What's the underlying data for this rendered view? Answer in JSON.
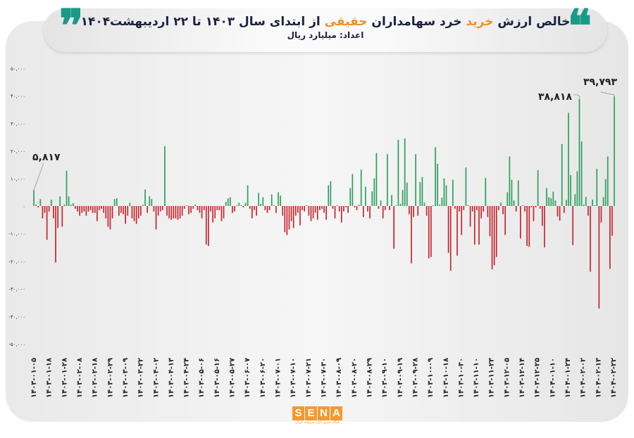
{
  "header": {
    "title_parts": [
      "خالص ارزش ",
      "خرید",
      " خرد سهامداران ",
      "حقیقی",
      " از ابتدای سال ۱۴۰۳ تا ۲۲ اردیبهشت۱۴۰۴"
    ],
    "subtitle": "اعداد: میلیارد ریال",
    "quote_open": "❝",
    "quote_close": "❞"
  },
  "colors": {
    "positive": "#2f9e5f",
    "negative": "#c4262e",
    "accent": "#f0902c",
    "quote": "#1a9a86"
  },
  "logo": {
    "text": "SENA",
    "letters": [
      "S",
      "E",
      "N",
      "A"
    ],
    "tagline": "پایگاه خبری بازار سرمایه ایران"
  },
  "chart_data": {
    "type": "bar",
    "title": "خالص ارزش خرید خرد سهامداران حقیقی از ابتدای سال ۱۴۰۳ تا ۲۲ اردیبهشت۱۴۰۴",
    "ylabel": "میلیارد ریال",
    "ylim": [
      -50000,
      50000
    ],
    "yticks": [
      50000,
      40000,
      30000,
      20000,
      10000,
      0,
      -10000,
      -20000,
      -30000,
      -40000,
      -50000
    ],
    "ytick_labels": [
      "۵۰,۰۰۰",
      "۴۰,۰۰۰",
      "۳۰,۰۰۰",
      "۲۰,۰۰۰",
      "۱۰,۰۰۰",
      "۰",
      "-۱۰,۰۰۰",
      "-۲۰,۰۰۰",
      "-۳۰,۰۰۰",
      "-۴۰,۰۰۰",
      "-۵۰,۰۰۰"
    ],
    "xtick_labels": [
      "۱۴۰۳-۰۱-۰۵",
      "۱۴۰۳-۰۱-۱۸",
      "۱۴۰۳-۰۱-۲۸",
      "۱۴۰۳-۰۲-۰۸",
      "۱۴۰۳-۰۲-۱۸",
      "۱۴۰۳-۰۲-۲۹",
      "۱۴۰۳-۰۳-۰۹",
      "۱۴۰۳-۰۳-۲۲",
      "۱۴۰۳-۰۴-۰۲",
      "۱۴۰۳-۰۴-۱۳",
      "۱۴۰۳-۰۴-۲۴",
      "۱۴۰۳-۰۵-۰۶",
      "۱۴۰۳-۰۵-۱۶",
      "۱۴۰۳-۰۵-۲۷",
      "۱۴۰۳-۰۶-۰۷",
      "۱۴۰۳-۰۶-۲۰",
      "۱۴۰۳-۰۷-۰۱",
      "۱۴۰۳-۰۷-۱۰",
      "۱۴۰۳-۰۷-۲۱",
      "۱۴۰۳-۰۷-۳۰",
      "۱۴۰۳-۰۸-۰۹",
      "۱۴۰۳-۰۸-۲۰",
      "۱۴۰۳-۰۸-۲۹",
      "۱۴۰۳-۰۹-۱۰",
      "۱۴۰۳-۰۹-۱۹",
      "۱۴۰۳-۰۹-۲۸",
      "۱۴۰۳-۱۰-۰۹",
      "۱۴۰۳-۱۰-۱۸",
      "۱۴۰۳-۱۰-۳۰",
      "۱۴۰۳-۱۱-۱۰",
      "۱۴۰۳-۱۱-۲۳",
      "۱۴۰۳-۱۲-۰۵",
      "۱۴۰۳-۱۲-۱۴",
      "۱۴۰۳-۱۲-۲۵",
      "۱۴۰۴-۰۱-۱۰",
      "۱۴۰۴-۰۱-۲۴",
      "۱۴۰۴-۰۲-۰۲",
      "۱۴۰۴-۰۲-۱۳",
      "۱۴۰۴-۰۲-۲۲"
    ],
    "values": [
      5817,
      500,
      -500,
      2500,
      -4500,
      -2500,
      -12300,
      -2000,
      2300,
      -4500,
      -20500,
      -8000,
      3500,
      -7500,
      500,
      12800,
      3500,
      500,
      1000,
      -1000,
      -2000,
      -3500,
      -2500,
      -2000,
      -3500,
      -2000,
      -1500,
      -2500,
      -2500,
      -5500,
      -1500,
      -1000,
      -2500,
      -4500,
      -7500,
      -8500,
      -4500,
      2500,
      2800,
      -3500,
      -2500,
      -3000,
      -6500,
      -3500,
      1200,
      -4500,
      -5500,
      -6500,
      -4500,
      -3500,
      500,
      6000,
      -2500,
      3500,
      2500,
      -2000,
      -8500,
      -3500,
      -2000,
      -1500,
      21700,
      -3500,
      -4500,
      -5000,
      -4500,
      -4500,
      -5000,
      -4500,
      -3500,
      -1000,
      300,
      -3000,
      -2500,
      -1000,
      500,
      -1500,
      -2500,
      -4500,
      -1500,
      -14000,
      -14500,
      -2000,
      -6000,
      -4500,
      -1500,
      -1500,
      -5500,
      -4500,
      1500,
      2800,
      3200,
      -2500,
      -2000,
      300,
      1200,
      300,
      -500,
      1200,
      7500,
      -1000,
      -4500,
      -1500,
      -3500,
      4800,
      800,
      3200,
      -1500,
      -2500,
      -1500,
      4200,
      300,
      -2500,
      5000,
      3800,
      -3500,
      -9500,
      -10500,
      -8500,
      -5500,
      -8000,
      -3500,
      -2500,
      -7000,
      -1500,
      -2000,
      300,
      -3500,
      -5500,
      -4500,
      -2500,
      -5000,
      -1500,
      -1000,
      -2500,
      -5000,
      7500,
      9000,
      -1000,
      -4500,
      300,
      -2000,
      -6000,
      -2000,
      -500,
      -2500,
      6500,
      11600,
      -500,
      -1500,
      500,
      13200,
      -4000,
      7000,
      -2000,
      -4500,
      5300,
      10000,
      19200,
      -1000,
      2000,
      -4500,
      -1500,
      18800,
      -1500,
      4000,
      -15500,
      300,
      24000,
      800,
      5800,
      24500,
      8500,
      -3000,
      -20800,
      -4000,
      18800,
      -3500,
      8700,
      10500,
      1200,
      -3500,
      -19000,
      -18500,
      300,
      21300,
      15300,
      500,
      3000,
      10000,
      7500,
      -17000,
      -23500,
      9500,
      -1000,
      -18000,
      -2000,
      -10500,
      -1500,
      14000,
      300,
      -7500,
      -2000,
      -14000,
      -1500,
      -14000,
      -4500,
      -2000,
      10200,
      -4000,
      -11000,
      -23000,
      -21500,
      -18500,
      -1500,
      1200,
      -3000,
      -10500,
      5000,
      18000,
      9500,
      2000,
      -2000,
      9300,
      -11800,
      300,
      -2000,
      -14500,
      -14800,
      -500,
      -5500,
      -500,
      13000,
      -1000,
      -7200,
      -15000,
      6500,
      3200,
      2800,
      5200,
      2000,
      -3800,
      -5300,
      22500,
      -2500,
      2200,
      33800,
      11200,
      -14200,
      4300,
      12600,
      38818,
      23400,
      500,
      3300,
      -3500,
      -23800,
      2300,
      300,
      13500,
      -37200,
      -6000,
      3200,
      9800,
      18000,
      -22800,
      -10800,
      39793
    ],
    "annotations": [
      {
        "label": "۵,۸۱۷",
        "value": 5817,
        "index": 0
      },
      {
        "label": "۳۸,۸۱۸",
        "value": 38818,
        "index": "peak-2"
      },
      {
        "label": "۳۹,۷۹۳",
        "value": 39793,
        "index": "last"
      }
    ],
    "grid": false,
    "legend": "none"
  }
}
